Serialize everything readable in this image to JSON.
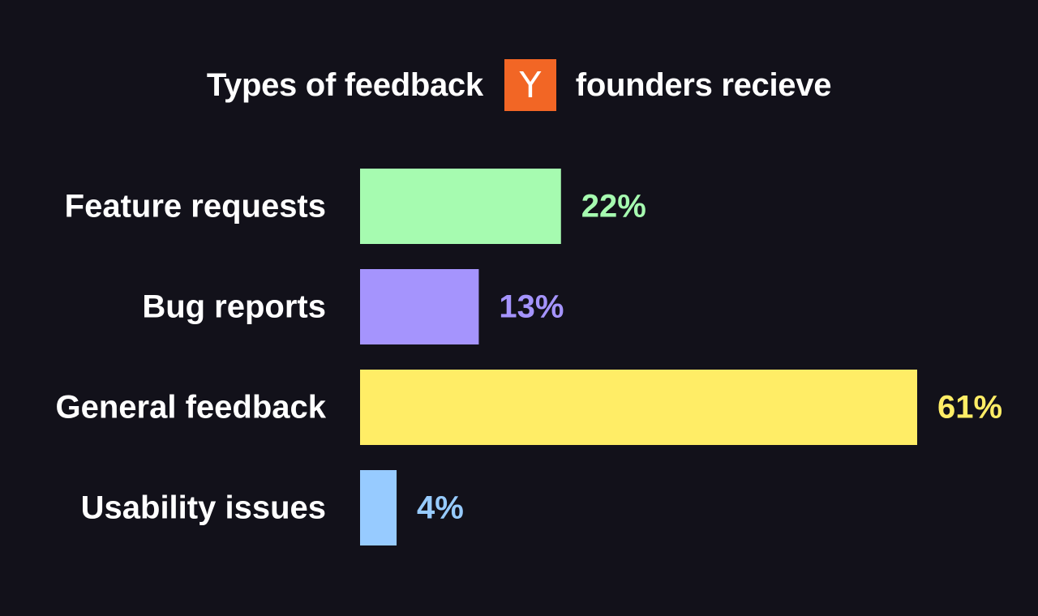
{
  "title": {
    "before": "Types of feedback",
    "logo_letter": "Y",
    "after": "founders recieve"
  },
  "chart_data": {
    "type": "bar",
    "orientation": "horizontal",
    "categories": [
      "Feature requests",
      "Bug reports",
      "General feedback",
      "Usability issues"
    ],
    "values": [
      22,
      13,
      61,
      4
    ],
    "value_labels": [
      "22%",
      "13%",
      "61%",
      "4%"
    ],
    "colors": [
      "#a6fbb0",
      "#a594fd",
      "#ffed66",
      "#97cbff"
    ],
    "unit": "%",
    "xlim": [
      0,
      61
    ],
    "grid": false,
    "legend": "none"
  },
  "colors": {
    "background": "#12111a",
    "text": "#ffffff",
    "logo_bg": "#f26625"
  }
}
